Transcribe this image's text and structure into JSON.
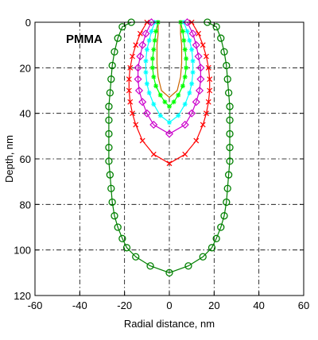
{
  "chart_data": {
    "type": "line",
    "title": "",
    "annotation": "PMMA",
    "xlabel": "Radial distance, nm",
    "ylabel": "Depth, nm",
    "xlim": [
      -60,
      60
    ],
    "ylim": [
      0,
      120
    ],
    "y_inverted": true,
    "x_ticks": [
      -60,
      -40,
      -20,
      0,
      20,
      40,
      60
    ],
    "y_ticks": [
      0,
      20,
      40,
      60,
      80,
      100,
      120
    ],
    "x_tick_labels": [
      "-60",
      "-40",
      "-20",
      "0",
      "20",
      "40",
      "60"
    ],
    "y_tick_labels": [
      "0",
      "20",
      "40",
      "60",
      "80",
      "100",
      "120"
    ],
    "grid": true,
    "grid_style": "dash-dot",
    "series": [
      {
        "color": "#cc6600",
        "marker": "none",
        "x": [
          -5,
          -5,
          -5.5,
          -5.5,
          -5,
          -3.5,
          0,
          3.5,
          5,
          5.5,
          5.5,
          5,
          5
        ],
        "y": [
          0,
          5,
          10,
          18,
          24,
          30,
          33,
          30,
          24,
          18,
          10,
          5,
          0
        ]
      },
      {
        "color": "#00ffff",
        "marker": "star",
        "x": [
          -6.5,
          -8,
          -9,
          -10,
          -10.5,
          -10.5,
          -10,
          -9,
          -7,
          -4,
          0,
          4,
          7,
          9,
          10,
          10.5,
          10.5,
          10,
          9,
          8,
          6.5
        ],
        "y": [
          0,
          4,
          8,
          12,
          17,
          22,
          27,
          31,
          36,
          41,
          44,
          41,
          36,
          31,
          27,
          22,
          17,
          12,
          8,
          4,
          0
        ]
      },
      {
        "color": "#00ff00",
        "marker": "star",
        "x": [
          -5,
          -6,
          -6.5,
          -7,
          -7.5,
          -7.5,
          -7,
          -6,
          -4,
          -2,
          0,
          2,
          4,
          6,
          7,
          7.5,
          7.5,
          7,
          6.5,
          6,
          5
        ],
        "y": [
          0,
          4,
          8,
          12,
          16,
          20,
          24,
          28,
          32,
          35,
          37,
          35,
          32,
          28,
          24,
          20,
          16,
          12,
          8,
          4,
          0
        ]
      },
      {
        "color": "#cc00cc",
        "marker": "diamond",
        "x": [
          -8,
          -10.5,
          -12,
          -13,
          -14,
          -14,
          -13.5,
          -12,
          -10,
          -7,
          0,
          7,
          10,
          12,
          13.5,
          14,
          14,
          13,
          12,
          10.5,
          8
        ],
        "y": [
          0,
          5,
          10,
          15,
          20,
          25,
          30,
          35,
          40,
          45,
          49,
          45,
          40,
          35,
          30,
          25,
          20,
          15,
          10,
          5,
          0
        ]
      },
      {
        "color": "#ff0000",
        "marker": "x",
        "x": [
          -10,
          -13,
          -15,
          -16.5,
          -17.5,
          -18,
          -18,
          -17.5,
          -16.5,
          -15,
          -12,
          -7,
          0,
          7,
          12,
          15,
          16.5,
          17.5,
          18,
          18,
          17.5,
          16.5,
          15,
          13,
          10
        ],
        "y": [
          0,
          5,
          10,
          15,
          20,
          25,
          30,
          35,
          40,
          45,
          52,
          58,
          62,
          58,
          52,
          45,
          40,
          35,
          30,
          25,
          20,
          15,
          10,
          5,
          0
        ]
      },
      {
        "color": "#008000",
        "marker": "circle",
        "x": [
          -17,
          -21,
          -23,
          -24.5,
          -25.5,
          -26,
          -26.5,
          -27,
          -27,
          -27,
          -27,
          -27,
          -26.5,
          -26,
          -25.5,
          -24.5,
          -23,
          -21,
          -19,
          -15,
          -8.5,
          0,
          8.5,
          15,
          19,
          21,
          23,
          24.5,
          25.5,
          26,
          26.5,
          27,
          27,
          27,
          27,
          27,
          26.5,
          26,
          25.5,
          24.5,
          23,
          21,
          17
        ],
        "y": [
          0,
          2,
          7,
          13,
          19,
          25,
          31,
          37,
          43,
          49,
          55,
          61,
          67,
          73,
          79,
          85,
          90,
          95,
          99,
          103,
          107,
          110,
          107,
          103,
          99,
          95,
          90,
          85,
          79,
          73,
          67,
          61,
          55,
          49,
          43,
          37,
          31,
          25,
          19,
          13,
          7,
          2,
          0
        ]
      }
    ]
  }
}
